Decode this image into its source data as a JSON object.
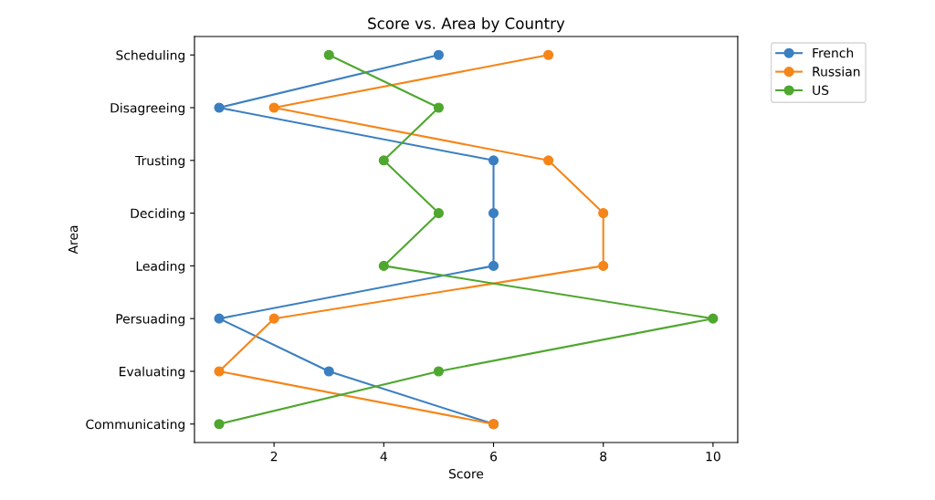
{
  "chart_data": {
    "type": "line",
    "title": "Score vs. Area by Country",
    "xlabel": "Score",
    "ylabel": "Area",
    "orientation": "horizontal",
    "categories": [
      "Scheduling",
      "Disagreeing",
      "Trusting",
      "Deciding",
      "Leading",
      "Persuading",
      "Evaluating",
      "Communicating"
    ],
    "series": [
      {
        "name": "French",
        "color": "#3a7fc1",
        "values": [
          5,
          1,
          6,
          6,
          6,
          1,
          3,
          6
        ]
      },
      {
        "name": "Russian",
        "color": "#f58518",
        "values": [
          7,
          2,
          7,
          8,
          8,
          2,
          1,
          6
        ]
      },
      {
        "name": "US",
        "color": "#4ea72e",
        "values": [
          3,
          5,
          4,
          5,
          4,
          10,
          5,
          1
        ]
      }
    ],
    "xlim": [
      0.55,
      10.45
    ],
    "xticks": [
      2,
      4,
      6,
      8,
      10
    ],
    "marker": "circle",
    "line_style": "solid",
    "legend": "top right",
    "grid": false
  }
}
